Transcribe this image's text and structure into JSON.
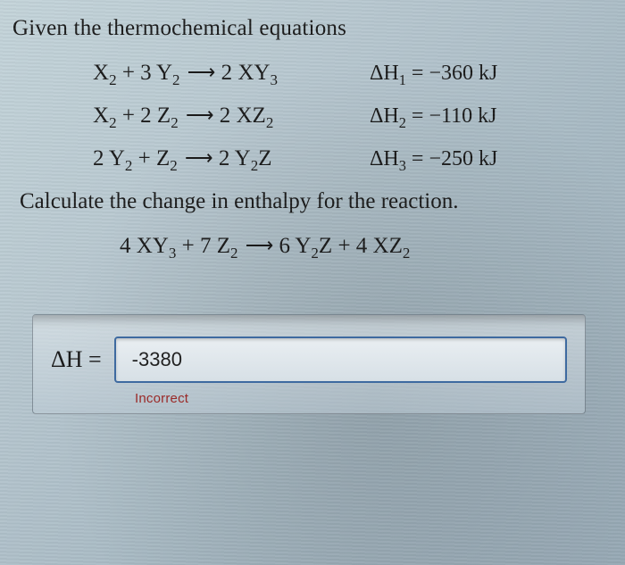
{
  "heading": "Given the thermochemical equations",
  "equations": [
    {
      "lhs": "X<sub>2</sub> + 3 Y<sub>2</sub>",
      "rhs": "2 XY<sub>3</sub>",
      "dh_label": "ΔH<sub>1</sub> = ",
      "dh_value": "−360 kJ"
    },
    {
      "lhs": "X<sub>2</sub> + 2 Z<sub>2</sub>",
      "rhs": "2 XZ<sub>2</sub>",
      "dh_label": "ΔH<sub>2</sub> = ",
      "dh_value": "−110 kJ"
    },
    {
      "lhs": "2 Y<sub>2</sub> + Z<sub>2</sub>",
      "rhs": "2 Y<sub>2</sub>Z",
      "dh_label": "ΔH<sub>3</sub> = ",
      "dh_value": "−250 kJ"
    }
  ],
  "calc_line": "Calculate the change in enthalpy for the reaction.",
  "target": {
    "lhs": "4 XY<sub>3</sub> + 7 Z<sub>2</sub>",
    "rhs": "6 Y<sub>2</sub>Z + 4 XZ<sub>2</sub>"
  },
  "answer": {
    "label": "ΔH =",
    "value": "-3380",
    "feedback": "Incorrect"
  },
  "style": {
    "font_base": 25,
    "arrow_glyph": "⟶",
    "colors": {
      "text": "#1a1a1a",
      "input_border": "#3e6aa0",
      "input_bg_top": "#e9eef2",
      "input_bg_bot": "#d7e0e6",
      "feedback": "#9a2a28",
      "bg_grad_a": "#c4d4da",
      "bg_grad_b": "#98aab6",
      "card_border": "rgba(20,30,40,0.35)"
    }
  }
}
